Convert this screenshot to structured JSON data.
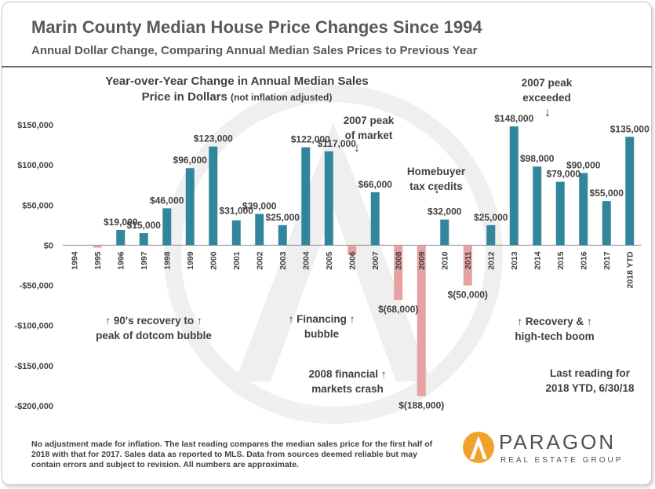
{
  "title": "Marin County Median House Price Changes Since 1994",
  "subtitle": "Annual Dollar Change, Comparing Annual Median Sales Prices to Previous Year",
  "chart_data": {
    "type": "bar",
    "title_lines": [
      "Year-over-Year Change in Annual Median Sales",
      "Price in Dollars"
    ],
    "title_note": "(not inflation adjusted)",
    "categories": [
      "1994",
      "1995",
      "1996",
      "1997",
      "1998",
      "1999",
      "2000",
      "2001",
      "2002",
      "2003",
      "2004",
      "2005",
      "2006",
      "2007",
      "2008",
      "2009",
      "2010",
      "2011",
      "2012",
      "2013",
      "2014",
      "2015",
      "2016",
      "2017",
      "2018 YTD"
    ],
    "values": [
      0,
      -3000,
      19000,
      15000,
      46000,
      96000,
      123000,
      31000,
      39000,
      25000,
      122000,
      117000,
      -12000,
      66000,
      -68000,
      -188000,
      32000,
      -50000,
      25000,
      148000,
      98000,
      79000,
      90000,
      55000,
      135000
    ],
    "data_labels": [
      "",
      "",
      "$19,000",
      "$15,000",
      "$46,000",
      "$96,000",
      "$123,000",
      "$31,000",
      "$39,000",
      "$25,000",
      "$122,000",
      "$117,000",
      "",
      "$66,000",
      "$(68,000)",
      "$(188,000)",
      "$32,000",
      "$(50,000)",
      "$25,000",
      "$148,000",
      "$98,000",
      "$79,000",
      "$90,000",
      "$55,000",
      "$135,000"
    ],
    "ylim": [
      -200000,
      150000
    ],
    "yticks": [
      150000,
      100000,
      50000,
      0,
      -50000,
      -100000,
      -150000,
      -200000
    ],
    "ytick_labels": [
      "$150,000",
      "$100,000",
      "$50,000",
      "$0",
      "-$50,000",
      "-$100,000",
      "-$150,000",
      "-$200,000"
    ],
    "colors": {
      "positive": "#31869b",
      "negative": "#e6a2a2"
    },
    "grid": false,
    "annotations": [
      {
        "lines": [
          "2007 peak",
          "of market"
        ],
        "arrow": "↓"
      },
      {
        "lines": [
          "Homebuyer",
          "tax credits"
        ],
        "arrow": "↓"
      },
      {
        "lines": [
          "2007 peak",
          "exceeded"
        ],
        "arrow": "↓"
      },
      {
        "lines": [
          "↑  90's recovery to ↑",
          "peak of dotcom bubble"
        ]
      },
      {
        "lines": [
          "↑ Financing ↑",
          "bubble"
        ]
      },
      {
        "lines": [
          "2008 financial ↑",
          "markets crash"
        ]
      },
      {
        "lines": [
          "↑        Recovery &      ↑",
          "high-tech boom"
        ]
      },
      {
        "lines": [
          "Last reading for",
          "2018 YTD, 6/30/18"
        ]
      }
    ]
  },
  "footnote": "No adjustment made for inflation. The last reading compares the median sales price for the first half of 2018 with that for 2017. Sales data as reported to MLS. Data from sources deemed reliable but may contain errors and subject to revision. All numbers are approximate.",
  "logo": {
    "name": "PARAGON",
    "tagline": "REAL ESTATE GROUP",
    "colors": {
      "orange": "#f0a22a",
      "gray": "#505050"
    }
  }
}
